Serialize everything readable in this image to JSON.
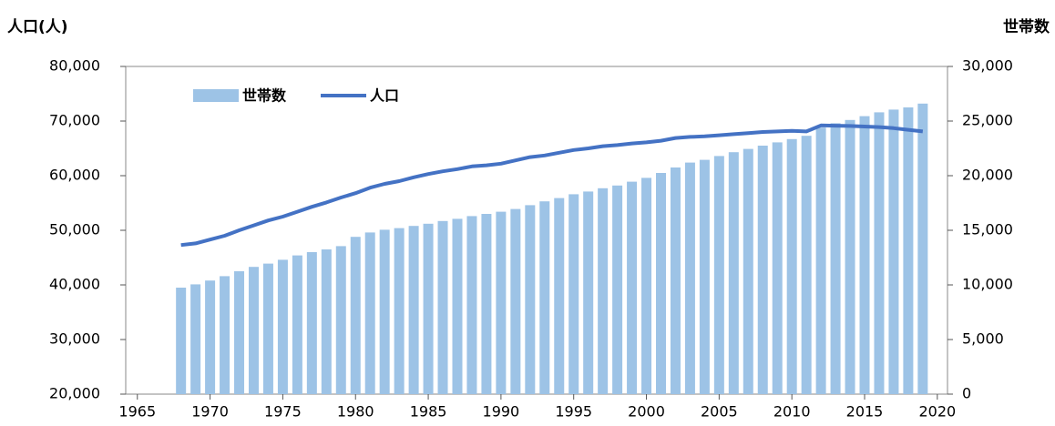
{
  "chart_data": {
    "type": "bar_line",
    "y_title": "人口(人)",
    "y2_title": "世帯数",
    "x": [
      1968,
      1969,
      1970,
      1971,
      1972,
      1973,
      1974,
      1975,
      1976,
      1977,
      1978,
      1979,
      1980,
      1981,
      1982,
      1983,
      1984,
      1985,
      1986,
      1987,
      1988,
      1989,
      1990,
      1991,
      1992,
      1993,
      1994,
      1995,
      1996,
      1997,
      1998,
      1999,
      2000,
      2001,
      2002,
      2003,
      2004,
      2005,
      2006,
      2007,
      2008,
      2009,
      2010,
      2011,
      2012,
      2013,
      2014,
      2015,
      2016,
      2017,
      2018,
      2019
    ],
    "series": [
      {
        "name": "世帯数",
        "type": "bar",
        "axis": "y2",
        "color": "#9dc3e6",
        "values": [
          9750,
          10050,
          10400,
          10800,
          11250,
          11650,
          11950,
          12300,
          12700,
          13000,
          13250,
          13550,
          14400,
          14800,
          15050,
          15200,
          15400,
          15600,
          15850,
          16050,
          16300,
          16500,
          16700,
          16950,
          17300,
          17650,
          17950,
          18300,
          18550,
          18850,
          19100,
          19450,
          19800,
          20250,
          20750,
          21200,
          21450,
          21800,
          22150,
          22450,
          22750,
          23050,
          23350,
          23650,
          24400,
          24800,
          25100,
          25450,
          25800,
          26050,
          26250,
          26600
        ]
      },
      {
        "name": "人口",
        "type": "line",
        "axis": "y",
        "color": "#4472c4",
        "values": [
          47300,
          47600,
          48300,
          49000,
          50000,
          50900,
          51800,
          52500,
          53400,
          54300,
          55100,
          56000,
          56800,
          57800,
          58500,
          59000,
          59700,
          60300,
          60800,
          61200,
          61700,
          61900,
          62200,
          62800,
          63400,
          63700,
          64200,
          64700,
          65000,
          65400,
          65600,
          65900,
          66100,
          66400,
          66900,
          67100,
          67200,
          67400,
          67600,
          67800,
          68000,
          68100,
          68200,
          68100,
          69200,
          69150,
          69100,
          69000,
          68900,
          68700,
          68400,
          68100
        ]
      }
    ],
    "xlim": [
      1964.2,
      2020.7
    ],
    "xticks": [
      1965,
      1970,
      1975,
      1980,
      1985,
      1990,
      1995,
      2000,
      2005,
      2010,
      2015,
      2020
    ],
    "ylim": [
      20000,
      80000
    ],
    "yticks": [
      {
        "value": 20000,
        "label": "20,000"
      },
      {
        "value": 30000,
        "label": "30,000"
      },
      {
        "value": 40000,
        "label": "40,000"
      },
      {
        "value": 50000,
        "label": "50,000"
      },
      {
        "value": 60000,
        "label": "60,000"
      },
      {
        "value": 70000,
        "label": "70,000"
      },
      {
        "value": 80000,
        "label": "80,000"
      }
    ],
    "y2lim": [
      0,
      30000
    ],
    "y2ticks": [
      0,
      {
        "value": 5000,
        "label": "5,000"
      },
      {
        "value": 10000,
        "label": "10,000"
      },
      {
        "value": 15000,
        "label": "15,000"
      },
      {
        "value": 20000,
        "label": "20,000"
      },
      {
        "value": 25000,
        "label": "25,000"
      },
      {
        "value": 30000,
        "label": "30,000"
      }
    ],
    "legend": "upper-left",
    "grid": false
  }
}
